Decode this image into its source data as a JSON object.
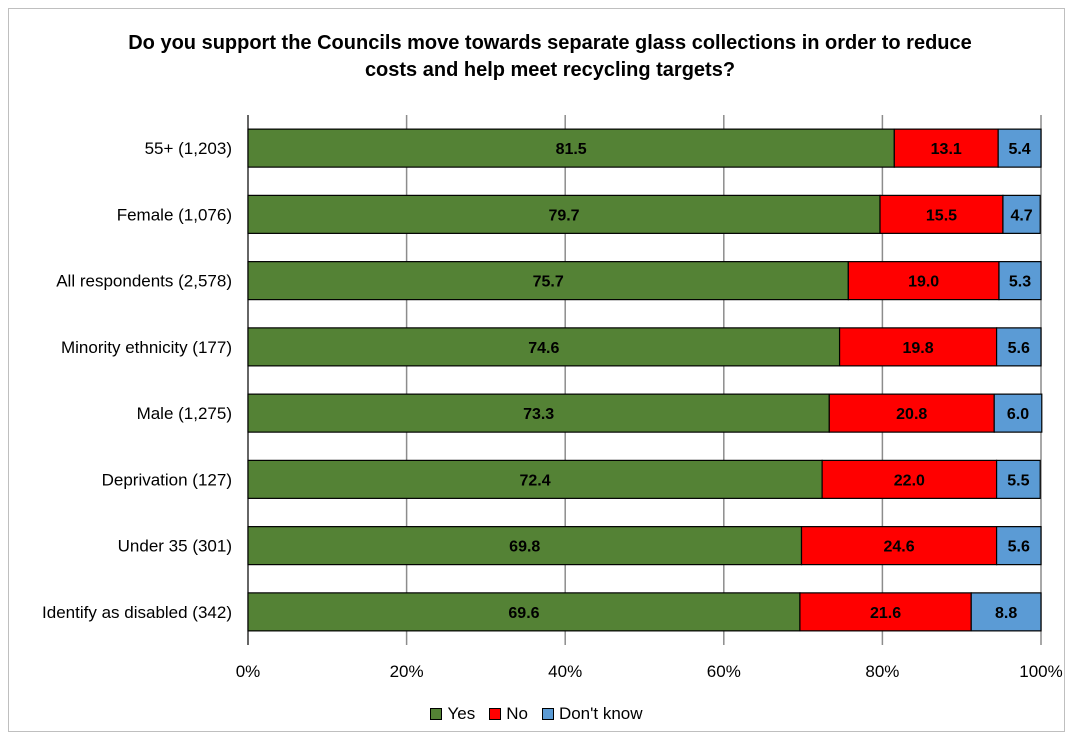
{
  "chart_data": {
    "type": "bar",
    "orientation": "horizontal",
    "stacked": true,
    "title": "Do you support the Councils move towards separate glass collections in order to reduce costs and help meet recycling targets?",
    "categories": [
      "55+ (1,203)",
      "Female (1,076)",
      "All respondents (2,578)",
      "Minority ethnicity (177)",
      "Male (1,275)",
      "Deprivation (127)",
      "Under 35 (301)",
      "Identify as disabled (342)"
    ],
    "series": [
      {
        "name": "Yes",
        "color": "#548235",
        "values": [
          81.5,
          79.7,
          75.7,
          74.6,
          73.3,
          72.4,
          69.8,
          69.6
        ],
        "labels": [
          "81.5",
          "79.7",
          "75.7",
          "74.6",
          "73.3",
          "72.4",
          "69.8",
          "69.6"
        ]
      },
      {
        "name": "No",
        "color": "#ff0000",
        "values": [
          13.1,
          15.5,
          19.0,
          19.8,
          20.8,
          22.0,
          24.6,
          21.6
        ],
        "labels": [
          "13.1",
          "15.5",
          "19.0",
          "19.8",
          "20.8",
          "22.0",
          "24.6",
          "21.6"
        ]
      },
      {
        "name": "Don't know",
        "color": "#5b9bd5",
        "values": [
          5.4,
          4.7,
          5.3,
          5.6,
          6.0,
          5.5,
          5.6,
          8.8
        ],
        "labels": [
          "5.4",
          "4.7",
          "5.3",
          "5.6",
          "6.0",
          "5.5",
          "5.6",
          "8.8"
        ]
      }
    ],
    "xlim": [
      0,
      100
    ],
    "xticks": [
      "0%",
      "20%",
      "40%",
      "60%",
      "80%",
      "100%"
    ],
    "grid": true,
    "legend_position": "bottom"
  }
}
